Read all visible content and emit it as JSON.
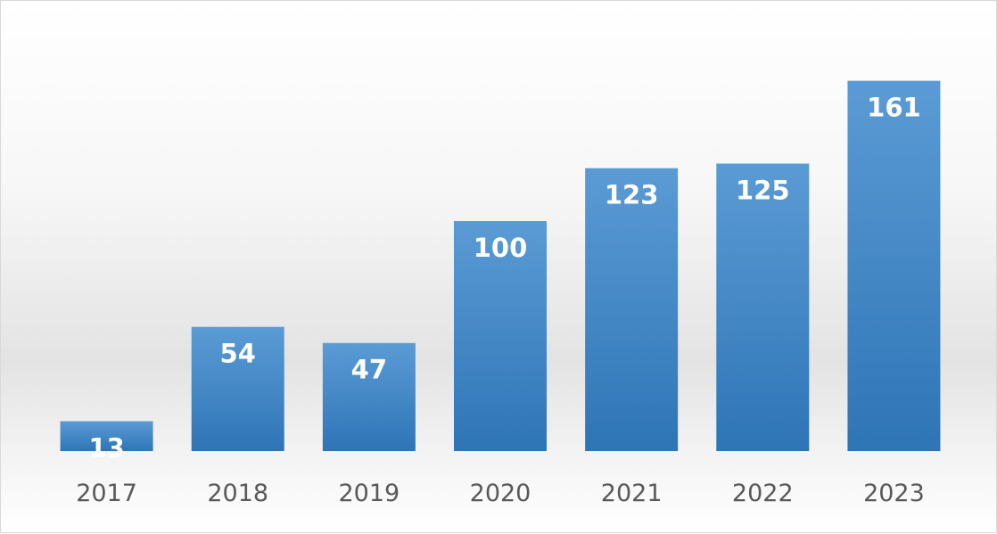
{
  "chart_data": {
    "type": "bar",
    "categories": [
      "2017",
      "2018",
      "2019",
      "2020",
      "2021",
      "2022",
      "2023"
    ],
    "values": [
      13,
      54,
      47,
      100,
      123,
      125,
      161
    ],
    "title": "",
    "xlabel": "",
    "ylabel": "",
    "ylim": [
      0,
      180
    ],
    "grid": false,
    "legend": "none",
    "data_labels": "inside-end",
    "colors": {
      "bar_top": "#5b9bd5",
      "bar_bottom": "#2e75b6",
      "data_label": "#ffffff",
      "tick_label": "#595959"
    }
  }
}
